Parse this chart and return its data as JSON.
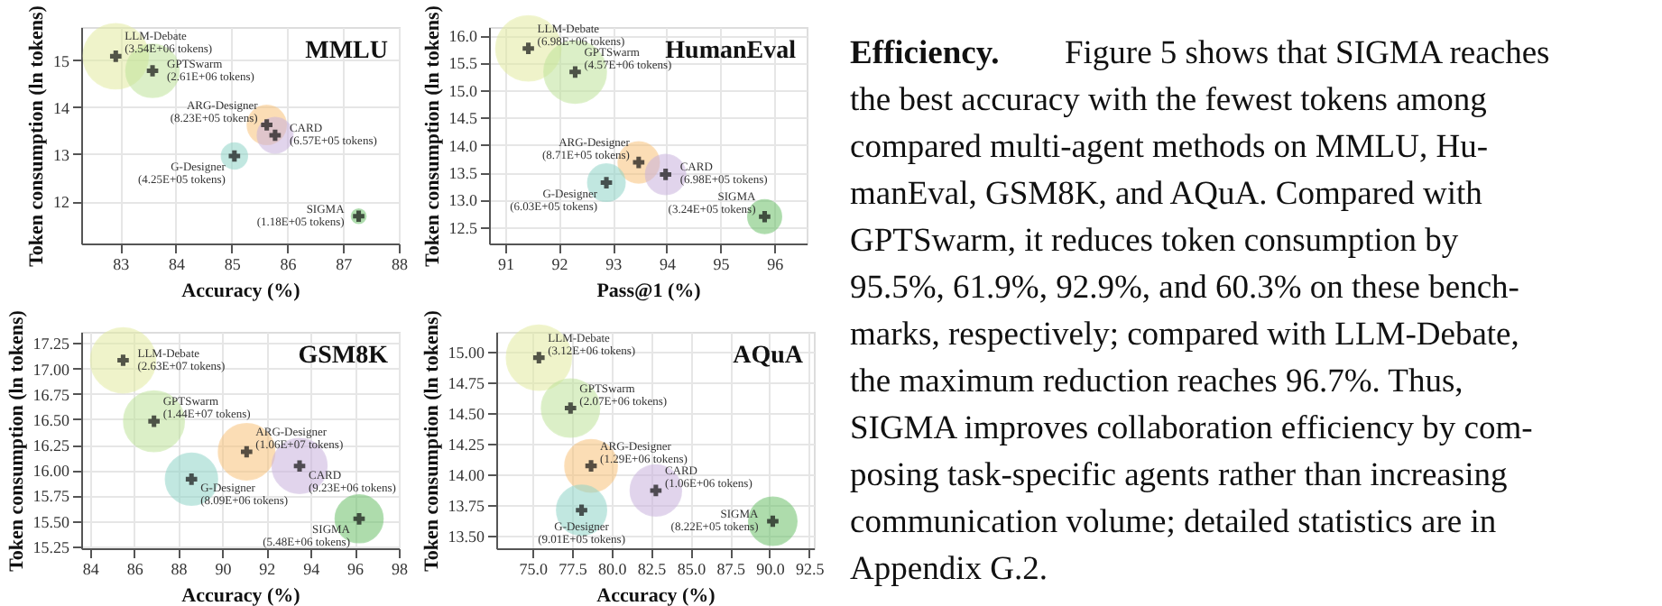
{
  "chart_data": [
    {
      "type": "bubble",
      "title": "MMLU",
      "xlabel": "Accuracy (%)",
      "ylabel": "Token consumption (ln tokens)",
      "xlim": [
        82.3,
        88.0
      ],
      "ylim": [
        11.1,
        15.7
      ],
      "xticks": [
        83,
        84,
        85,
        86,
        87,
        88
      ],
      "yticks": [
        12,
        13,
        14,
        15
      ],
      "grid": true,
      "series": [
        {
          "name": "LLM-Debate",
          "color": "#e2eba0",
          "x": [
            82.92
          ],
          "values": [
            15.08
          ],
          "sizes": [
            1
          ],
          "value_labels": [
            "(3.54E+06 tokens)"
          ]
        },
        {
          "name": "GPTSwarm",
          "color": "#bfe39a",
          "x": [
            83.58
          ],
          "values": [
            14.77
          ],
          "sizes": [
            0.67
          ],
          "value_labels": [
            "(2.61E+06 tokens)"
          ]
        },
        {
          "name": "ARG-Designer",
          "color": "#f8c27a",
          "x": [
            85.63
          ],
          "values": [
            13.62
          ],
          "sizes": [
            0.36
          ],
          "value_labels": [
            "(8.23E+05 tokens)"
          ]
        },
        {
          "name": "CARD",
          "color": "#c9b2dd",
          "x": [
            85.78
          ],
          "values": [
            13.4
          ],
          "sizes": [
            0.3
          ],
          "value_labels": [
            "(6.57E+05 tokens)"
          ]
        },
        {
          "name": "G-Designer",
          "color": "#8fd4c8",
          "x": [
            85.05
          ],
          "values": [
            12.96
          ],
          "sizes": [
            0.16
          ],
          "value_labels": [
            "(4.25E+05 tokens)"
          ]
        },
        {
          "name": "SIGMA",
          "color": "#6cc06a",
          "x": [
            87.28
          ],
          "values": [
            11.68
          ],
          "sizes": [
            0.05
          ],
          "value_labels": [
            "(1.18E+05 tokens)"
          ]
        }
      ]
    },
    {
      "type": "bubble",
      "title": "HumanEval",
      "xlabel": "Pass@1 (%)",
      "ylabel": "Token consumption (ln tokens)",
      "xlim": [
        90.7,
        96.6
      ],
      "ylim": [
        12.2,
        16.15
      ],
      "xticks": [
        91,
        92,
        93,
        94,
        95,
        96
      ],
      "yticks": [
        12.5,
        {
          "value": 13,
          "label": "13.0"
        },
        13.5,
        {
          "value": 14,
          "label": "14.0"
        },
        14.5,
        {
          "value": 15,
          "label": "15.0"
        },
        15.5,
        {
          "value": 16,
          "label": "16.0"
        }
      ],
      "grid": true,
      "series": [
        {
          "name": "LLM-Debate",
          "color": "#e2eba0",
          "x": [
            91.43
          ],
          "values": [
            15.76
          ],
          "sizes": [
            1
          ],
          "value_labels": [
            "(6.98E+06 tokens)"
          ]
        },
        {
          "name": "GPTSwarm",
          "color": "#bfe39a",
          "x": [
            92.3
          ],
          "values": [
            15.33
          ],
          "sizes": [
            0.92
          ],
          "value_labels": [
            "(4.57E+06 tokens)"
          ]
        },
        {
          "name": "ARG-Designer",
          "color": "#f8c27a",
          "x": [
            93.48
          ],
          "values": [
            13.68
          ],
          "sizes": [
            0.4
          ],
          "value_labels": [
            "(8.71E+05 tokens)"
          ]
        },
        {
          "name": "CARD",
          "color": "#c9b2dd",
          "x": [
            93.98
          ],
          "values": [
            13.46
          ],
          "sizes": [
            0.38
          ],
          "value_labels": [
            "(6.98E+05 tokens)"
          ]
        },
        {
          "name": "G-Designer",
          "color": "#8fd4c8",
          "x": [
            92.88
          ],
          "values": [
            13.31
          ],
          "sizes": [
            0.33
          ],
          "value_labels": [
            "(6.03E+05 tokens)"
          ]
        },
        {
          "name": "SIGMA",
          "color": "#6cc06a",
          "x": [
            95.82
          ],
          "values": [
            12.69
          ],
          "sizes": [
            0.27
          ],
          "value_labels": [
            "(3.24E+05 tokens)"
          ]
        }
      ]
    },
    {
      "type": "bubble",
      "title": "GSM8K",
      "xlabel": "Accuracy (%)",
      "ylabel": "Token consumption (ln tokens)",
      "xlim": [
        83.6,
        98.0
      ],
      "ylim": [
        15.23,
        17.36
      ],
      "xticks": [
        84,
        86,
        88,
        90,
        92,
        94,
        96,
        98
      ],
      "yticks": [
        {
          "value": 15.25,
          "label": "15.25"
        },
        {
          "value": 15.5,
          "label": "15.50"
        },
        {
          "value": 15.75,
          "label": "15.75"
        },
        {
          "value": 16,
          "label": "16.00"
        },
        {
          "value": 16.25,
          "label": "16.25"
        },
        {
          "value": 16.5,
          "label": "16.50"
        },
        {
          "value": 16.75,
          "label": "16.75"
        },
        {
          "value": 17,
          "label": "17.00"
        },
        {
          "value": 17.25,
          "label": "17.25"
        }
      ],
      "grid": true,
      "series": [
        {
          "name": "LLM-Debate",
          "color": "#e2eba0",
          "x": [
            85.5
          ],
          "values": [
            17.08
          ],
          "sizes": [
            1
          ],
          "value_labels": [
            "(2.63E+07 tokens)"
          ]
        },
        {
          "name": "GPTSwarm",
          "color": "#bfe39a",
          "x": [
            86.9
          ],
          "values": [
            16.48
          ],
          "sizes": [
            0.87
          ],
          "value_labels": [
            "(1.44E+07 tokens)"
          ]
        },
        {
          "name": "ARG-Designer",
          "color": "#f8c27a",
          "x": [
            91.1
          ],
          "values": [
            16.18
          ],
          "sizes": [
            0.75
          ],
          "value_labels": [
            "(1.06E+07 tokens)"
          ]
        },
        {
          "name": "CARD",
          "color": "#c9b2dd",
          "x": [
            93.5
          ],
          "values": [
            16.04
          ],
          "sizes": [
            0.71
          ],
          "value_labels": [
            "(9.23E+06 tokens)"
          ]
        },
        {
          "name": "G-Designer",
          "color": "#8fd4c8",
          "x": [
            88.6
          ],
          "values": [
            15.91
          ],
          "sizes": [
            0.64
          ],
          "value_labels": [
            "(8.09E+06 tokens)"
          ]
        },
        {
          "name": "SIGMA",
          "color": "#6cc06a",
          "x": [
            96.2
          ],
          "values": [
            15.52
          ],
          "sizes": [
            0.54
          ],
          "value_labels": [
            "(5.48E+06 tokens)"
          ]
        }
      ]
    },
    {
      "type": "bubble",
      "title": "AQuA",
      "xlabel": "Accuracy (%)",
      "ylabel": "Token consumption (ln tokens)",
      "xlim": [
        72.7,
        92.8
      ],
      "ylim": [
        13.4,
        15.16
      ],
      "xticks": [
        {
          "value": 75,
          "label": "75.0"
        },
        77.5,
        {
          "value": 80,
          "label": "80.0"
        },
        82.5,
        {
          "value": 85,
          "label": "85.0"
        },
        87.5,
        {
          "value": 90,
          "label": "90.0"
        },
        92.5
      ],
      "yticks": [
        {
          "value": 13.5,
          "label": "13.50"
        },
        13.75,
        {
          "value": 14,
          "label": "14.00"
        },
        14.25,
        {
          "value": 14.5,
          "label": "14.50"
        },
        14.75,
        {
          "value": 15,
          "label": "15.00"
        }
      ],
      "grid": true,
      "series": [
        {
          "name": "LLM-Debate",
          "color": "#e2eba0",
          "x": [
            75.4
          ],
          "values": [
            14.95
          ],
          "sizes": [
            1
          ],
          "value_labels": [
            "(3.12E+06 tokens)"
          ]
        },
        {
          "name": "GPTSwarm",
          "color": "#bfe39a",
          "x": [
            77.4
          ],
          "values": [
            14.54
          ],
          "sizes": [
            0.8
          ],
          "value_labels": [
            "(2.07E+06 tokens)"
          ]
        },
        {
          "name": "ARG-Designer",
          "color": "#f8c27a",
          "x": [
            78.7
          ],
          "values": [
            14.07
          ],
          "sizes": [
            0.65
          ],
          "value_labels": [
            "(1.29E+06 tokens)"
          ]
        },
        {
          "name": "CARD",
          "color": "#c9b2dd",
          "x": [
            82.8
          ],
          "values": [
            13.87
          ],
          "sizes": [
            0.62
          ],
          "value_labels": [
            "(1.06E+06 tokens)"
          ]
        },
        {
          "name": "G-Designer",
          "color": "#8fd4c8",
          "x": [
            78.1
          ],
          "values": [
            13.71
          ],
          "sizes": [
            0.59
          ],
          "value_labels": [
            "(9.01E+05 tokens)"
          ]
        },
        {
          "name": "SIGMA",
          "color": "#6cc06a",
          "x": [
            90.2
          ],
          "values": [
            13.62
          ],
          "sizes": [
            0.55
          ],
          "value_labels": [
            "(8.22E+05 tokens)"
          ]
        }
      ]
    },
    {
      "type": "other",
      "title": "Efficiency.",
      "annotations": [
        "Figure 5 shows that SIGMA reaches",
        "the best accuracy with the fewest tokens among",
        "compared multi-agent methods on MMLU, Hu-",
        "manEval, GSM8K, and AQuA. Compared with",
        "GPTSwarm, it reduces token consumption by",
        "95.5%, 61.9%, 92.9%, and 60.3% on these bench-",
        "marks, respectively; compared with LLM-Debate,",
        "the maximum reduction reaches 96.7%.  Thus,",
        "SIGMA improves collaboration efficiency by com-",
        "posing task-specific agents rather than increasing",
        "communication volume; detailed statistics are in",
        "Appendix G.2."
      ]
    }
  ]
}
